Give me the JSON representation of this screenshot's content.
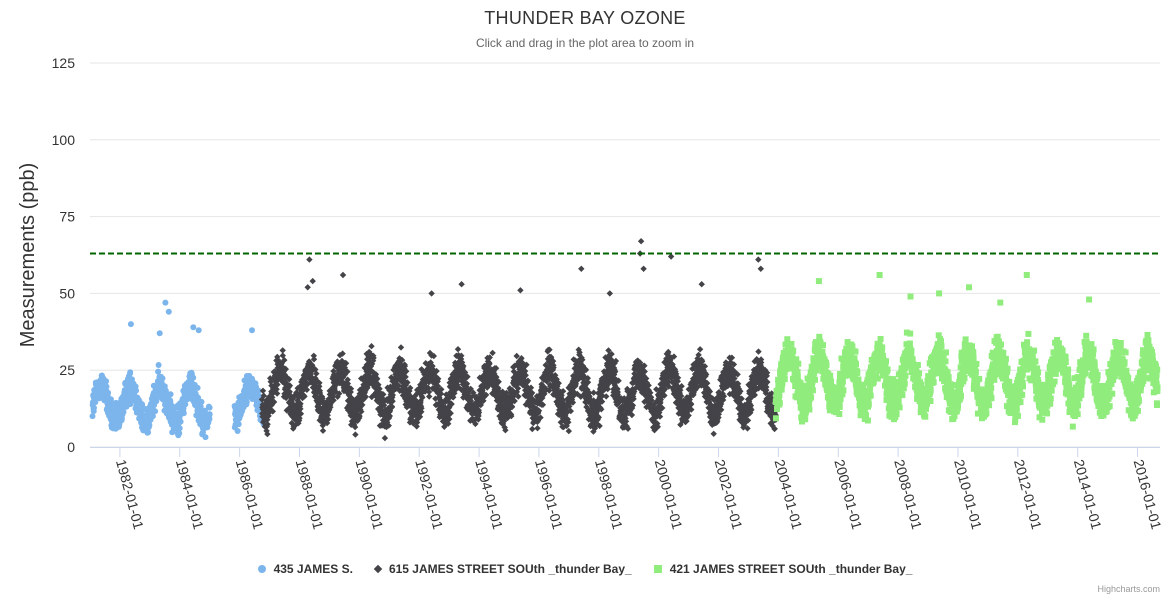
{
  "chart_data": {
    "type": "scatter",
    "title": "THUNDER BAY OZONE",
    "subtitle": "Click and drag in the plot area to zoom in",
    "xlabel": "",
    "ylabel": "Measurements (ppb)",
    "ylim": [
      0,
      125
    ],
    "yticks": [
      0,
      25,
      50,
      75,
      100,
      125
    ],
    "xlim": [
      "1981-01-01",
      "2016-10-01"
    ],
    "xticks": [
      "1982-01-01",
      "1984-01-01",
      "1986-01-01",
      "1988-01-01",
      "1990-01-01",
      "1992-01-01",
      "1994-01-01",
      "1996-01-01",
      "1998-01-01",
      "2000-01-01",
      "2002-01-01",
      "2004-01-01",
      "2006-01-01",
      "2008-01-01",
      "2010-01-01",
      "2012-01-01",
      "2014-01-01",
      "2016-01-01"
    ],
    "grid": true,
    "legend_position": "bottom-center",
    "threshold_line": {
      "value": 63,
      "color": "#006400",
      "style": "dashed"
    },
    "series": [
      {
        "name": "435 JAMES S.",
        "marker": "circle",
        "color": "#7cb5ec",
        "segments": [
          {
            "start": "1981-02-01",
            "end": "1985-01-01",
            "center": 14,
            "amplitude": 6,
            "spread": 8
          },
          {
            "start": "1985-11-01",
            "end": "1986-11-01",
            "center": 15,
            "amplitude": 5,
            "spread": 7
          }
        ],
        "peaks": [
          [
            "1982-05-15",
            40
          ],
          [
            "1983-07-10",
            47
          ],
          [
            "1983-08-20",
            44
          ],
          [
            "1984-06-15",
            39
          ],
          [
            "1984-08-20",
            38
          ],
          [
            "1986-06-01",
            38
          ],
          [
            "1983-05-01",
            37
          ]
        ]
      },
      {
        "name": "615 JAMES STREET SOUth _thunder Bay_",
        "marker": "diamond",
        "color": "#434348",
        "segments": [
          {
            "start": "1986-10-01",
            "end": "2003-12-01",
            "center": 18,
            "amplitude": 7,
            "spread": 10
          }
        ],
        "peaks": [
          [
            "1988-05-01",
            61
          ],
          [
            "1988-06-10",
            54
          ],
          [
            "1988-04-10",
            52
          ],
          [
            "1989-06-15",
            56
          ],
          [
            "1992-06-01",
            50
          ],
          [
            "1993-06-01",
            53
          ],
          [
            "1995-05-20",
            51
          ],
          [
            "1997-06-01",
            58
          ],
          [
            "1998-05-15",
            50
          ],
          [
            "1999-06-01",
            67
          ],
          [
            "1999-05-20",
            63
          ],
          [
            "1999-07-01",
            58
          ],
          [
            "2000-06-01",
            62
          ],
          [
            "2003-05-01",
            61
          ],
          [
            "2003-06-01",
            58
          ],
          [
            "2001-06-10",
            53
          ]
        ]
      },
      {
        "name": "421 JAMES STREET SOUth _thunder Bay_",
        "marker": "square",
        "color": "#90ed7d",
        "segments": [
          {
            "start": "2003-12-01",
            "end": "2016-09-01",
            "center": 22,
            "amplitude": 8,
            "spread": 10
          }
        ],
        "peaks": [
          [
            "2005-05-10",
            54
          ],
          [
            "2007-05-20",
            56
          ],
          [
            "2008-06-01",
            49
          ],
          [
            "2009-05-15",
            50
          ],
          [
            "2010-05-15",
            52
          ],
          [
            "2012-04-20",
            56
          ],
          [
            "2014-05-20",
            48
          ],
          [
            "2011-06-01",
            47
          ]
        ]
      }
    ]
  },
  "credits": "Highcharts.com"
}
